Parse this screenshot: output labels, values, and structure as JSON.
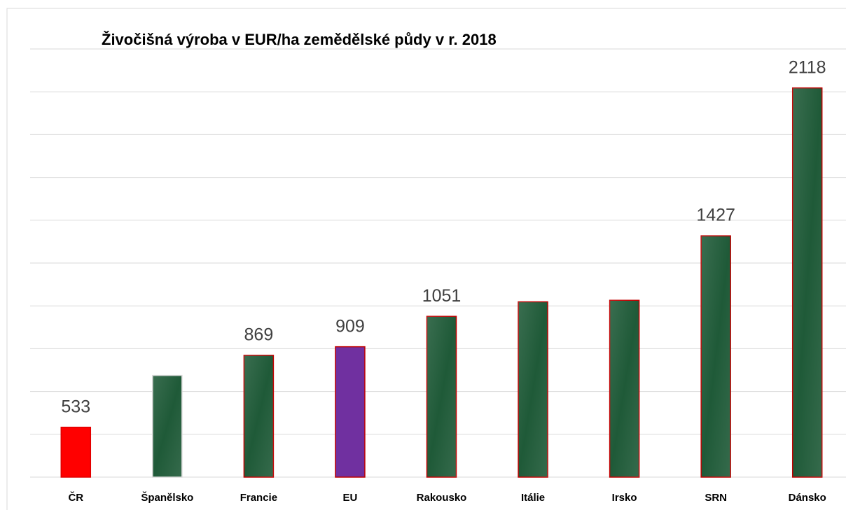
{
  "chart_data": {
    "type": "bar",
    "title": "Živočišná výroba v EUR/ha zemědělské půdy v r. 2018",
    "categories": [
      "ČR",
      "Španělsko",
      "Francie",
      "EU",
      "Rakousko",
      "Itálie",
      "Irsko",
      "SRN",
      "Dánsko"
    ],
    "values": [
      533,
      775,
      869,
      909,
      1051,
      1119,
      1126,
      1427,
      2118
    ],
    "value_labels": [
      "533",
      null,
      "869",
      "909",
      "1051",
      null,
      null,
      "1427",
      "2118"
    ],
    "colors": [
      "#ff0000",
      "#1f5a38",
      "#1f5a38",
      "#7030a0",
      "#1f5a38",
      "#1f5a38",
      "#1f5a38",
      "#1f5a38",
      "#1f5a38"
    ],
    "edgecolors": [
      "#e00000",
      "#d9d9d9",
      "#c00000",
      "#c00000",
      "#c00000",
      "#c00000",
      "#c00000",
      "#c00000",
      "#c00000"
    ],
    "ylim": [
      300,
      2300
    ],
    "yticks": [
      300,
      500,
      700,
      900,
      1100,
      1300,
      1500,
      1700,
      1900,
      2100,
      2300
    ],
    "grid": true
  }
}
